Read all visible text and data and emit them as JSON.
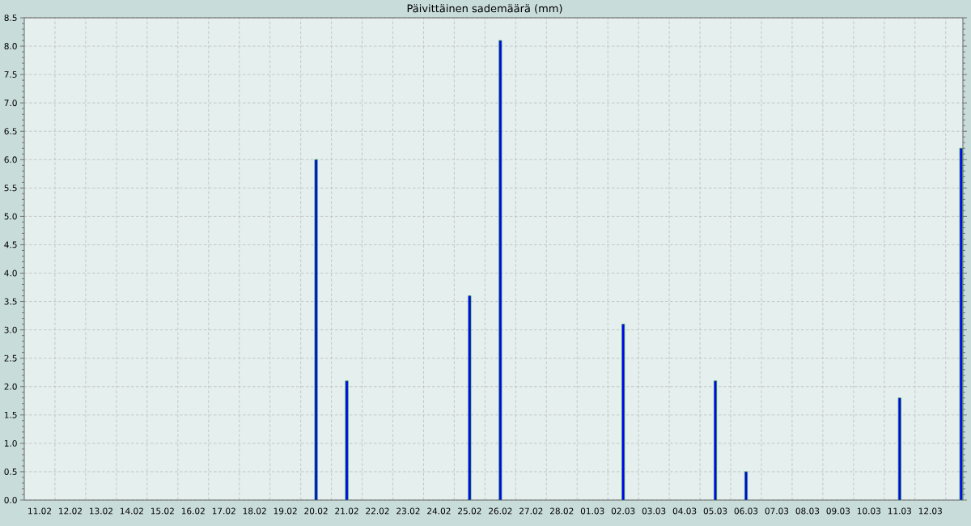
{
  "chart_data": {
    "type": "bar",
    "title": "Päivittäinen sademäärä (mm)",
    "categories": [
      "11.02",
      "12.02",
      "13.02",
      "14.02",
      "15.02",
      "16.02",
      "17.02",
      "18.02",
      "19.02",
      "20.02",
      "21.02",
      "22.02",
      "23.02",
      "24.02",
      "25.02",
      "26.02",
      "27.02",
      "28.02",
      "01.03",
      "02.03",
      "03.03",
      "04.03",
      "05.03",
      "06.03",
      "07.03",
      "08.03",
      "09.03",
      "10.03",
      "11.03",
      "12.03",
      null
    ],
    "values": [
      null,
      null,
      null,
      null,
      null,
      null,
      null,
      null,
      null,
      6.0,
      2.1,
      null,
      null,
      null,
      3.6,
      8.1,
      null,
      null,
      null,
      3.1,
      null,
      null,
      2.1,
      0.5,
      null,
      null,
      null,
      null,
      1.8,
      null,
      6.2
    ],
    "color": "#0000ff",
    "ylim": [
      0,
      8.5
    ],
    "yticks": [
      {
        "value": 0,
        "label": "0.0"
      },
      {
        "value": 0.1,
        "label": null
      },
      {
        "value": 0.2,
        "label": null
      },
      {
        "value": 0.3,
        "label": null
      },
      {
        "value": 0.4,
        "label": null
      },
      0.5,
      {
        "value": 0.6,
        "label": null
      },
      {
        "value": 0.7,
        "label": null
      },
      {
        "value": 0.8,
        "label": null
      },
      {
        "value": 0.9,
        "label": null
      },
      {
        "value": 1,
        "label": "1.0"
      },
      {
        "value": 1.1,
        "label": null
      },
      {
        "value": 1.2,
        "label": null
      },
      {
        "value": 1.3,
        "label": null
      },
      {
        "value": 1.4,
        "label": null
      },
      1.5,
      {
        "value": 1.6,
        "label": null
      },
      {
        "value": 1.7,
        "label": null
      },
      {
        "value": 1.8,
        "label": null
      },
      {
        "value": 1.9,
        "label": null
      },
      {
        "value": 2,
        "label": "2.0"
      },
      {
        "value": 2.1,
        "label": null
      },
      {
        "value": 2.2,
        "label": null
      },
      {
        "value": 2.3,
        "label": null
      },
      {
        "value": 2.4,
        "label": null
      },
      2.5,
      {
        "value": 2.6,
        "label": null
      },
      {
        "value": 2.7,
        "label": null
      },
      {
        "value": 2.8,
        "label": null
      },
      {
        "value": 2.9,
        "label": null
      },
      {
        "value": 3,
        "label": "3.0"
      },
      {
        "value": 3.1,
        "label": null
      },
      {
        "value": 3.2,
        "label": null
      },
      {
        "value": 3.3,
        "label": null
      },
      {
        "value": 3.4,
        "label": null
      },
      3.5,
      {
        "value": 3.6,
        "label": null
      },
      {
        "value": 3.7,
        "label": null
      },
      {
        "value": 3.8,
        "label": null
      },
      {
        "value": 3.9,
        "label": null
      },
      {
        "value": 4,
        "label": "4.0"
      },
      {
        "value": 4.1,
        "label": null
      },
      {
        "value": 4.2,
        "label": null
      },
      {
        "value": 4.3,
        "label": null
      },
      {
        "value": 4.4,
        "label": null
      },
      4.5,
      {
        "value": 4.6,
        "label": null
      },
      {
        "value": 4.7,
        "label": null
      },
      {
        "value": 4.8,
        "label": null
      },
      {
        "value": 4.9,
        "label": null
      },
      {
        "value": 5,
        "label": "5.0"
      },
      {
        "value": 5.1,
        "label": null
      },
      {
        "value": 5.2,
        "label": null
      },
      {
        "value": 5.3,
        "label": null
      },
      {
        "value": 5.4,
        "label": null
      },
      5.5,
      {
        "value": 5.6,
        "label": null
      },
      {
        "value": 5.7,
        "label": null
      },
      {
        "value": 5.8,
        "label": null
      },
      {
        "value": 5.9,
        "label": null
      },
      {
        "value": 6,
        "label": "6.0"
      },
      {
        "value": 6.1,
        "label": null
      },
      {
        "value": 6.2,
        "label": null
      },
      {
        "value": 6.3,
        "label": null
      },
      {
        "value": 6.4,
        "label": null
      },
      6.5,
      {
        "value": 6.6,
        "label": null
      },
      {
        "value": 6.7,
        "label": null
      },
      {
        "value": 6.8,
        "label": null
      },
      {
        "value": 6.9,
        "label": null
      },
      {
        "value": 7,
        "label": "7.0"
      },
      {
        "value": 7.1,
        "label": null
      },
      {
        "value": 7.2,
        "label": null
      },
      {
        "value": 7.3,
        "label": null
      },
      {
        "value": 7.4,
        "label": null
      },
      7.5,
      {
        "value": 7.6,
        "label": null
      },
      {
        "value": 7.7,
        "label": null
      },
      {
        "value": 7.8,
        "label": null
      },
      {
        "value": 7.9,
        "label": null
      },
      {
        "value": 8,
        "label": "8.0"
      },
      {
        "value": 8.1,
        "label": null
      },
      {
        "value": 8.2,
        "label": null
      },
      {
        "value": 8.3,
        "label": null
      },
      {
        "value": 8.4,
        "label": null
      },
      8.5
    ],
    "grid": true
  }
}
